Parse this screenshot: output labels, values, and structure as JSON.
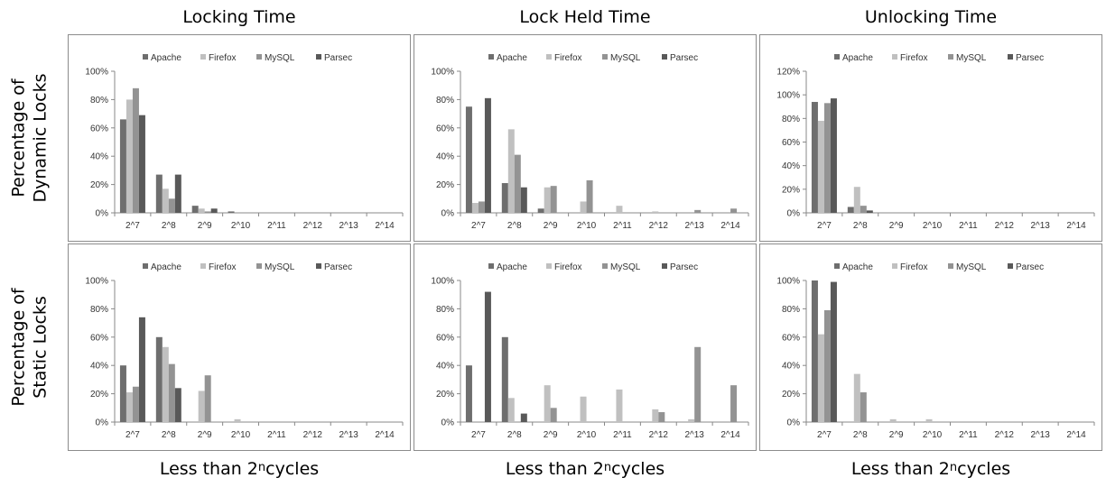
{
  "column_titles": [
    "Locking Time",
    "Lock Held Time",
    "Unlocking Time"
  ],
  "row_labels": [
    {
      "line1": "Percentage of",
      "line2": "Dynamic Locks"
    },
    {
      "line1": "Percentage of",
      "line2": "Static Locks"
    }
  ],
  "xlabel": {
    "prefix": "Less than 2",
    "sup": "n",
    "suffix": "cycles"
  },
  "colors": {
    "Apache": "#6e6e6e",
    "Firefox": "#c0c0c0",
    "MySQL": "#939393",
    "Parsec": "#595959"
  },
  "chart_data": [
    {
      "type": "bar",
      "categories": [
        "2^7",
        "2^8",
        "2^9",
        "2^10",
        "2^11",
        "2^12",
        "2^13",
        "2^14"
      ],
      "legend": [
        "Apache",
        "Firefox",
        "MySQL",
        "Parsec"
      ],
      "ylim": [
        0,
        100
      ],
      "yticks": [
        "0%",
        "20%",
        "40%",
        "60%",
        "80%",
        "100%"
      ],
      "series": [
        {
          "name": "Apache",
          "values": [
            66,
            27,
            5,
            1,
            0,
            0,
            0,
            0
          ]
        },
        {
          "name": "Firefox",
          "values": [
            80,
            17,
            3,
            0,
            0,
            0,
            0,
            0
          ]
        },
        {
          "name": "MySQL",
          "values": [
            88,
            10,
            1,
            0,
            0,
            0,
            0,
            0
          ]
        },
        {
          "name": "Parsec",
          "values": [
            69,
            27,
            3,
            0,
            0,
            0,
            0,
            0
          ]
        }
      ]
    },
    {
      "type": "bar",
      "categories": [
        "2^7",
        "2^8",
        "2^9",
        "2^10",
        "2^11",
        "2^12",
        "2^13",
        "2^14"
      ],
      "legend": [
        "Apache",
        "Firefox",
        "MySQL",
        "Parsec"
      ],
      "ylim": [
        0,
        100
      ],
      "yticks": [
        "0%",
        "20%",
        "40%",
        "60%",
        "80%",
        "100%"
      ],
      "series": [
        {
          "name": "Apache",
          "values": [
            75,
            21,
            3,
            0,
            0,
            0,
            0,
            0
          ]
        },
        {
          "name": "Firefox",
          "values": [
            7,
            59,
            18,
            8,
            5,
            1,
            0,
            0
          ]
        },
        {
          "name": "MySQL",
          "values": [
            8,
            41,
            19,
            23,
            0,
            0,
            2,
            3
          ]
        },
        {
          "name": "Parsec",
          "values": [
            81,
            18,
            0,
            0,
            0,
            0,
            0,
            0
          ]
        }
      ]
    },
    {
      "type": "bar",
      "categories": [
        "2^7",
        "2^8",
        "2^9",
        "2^10",
        "2^11",
        "2^12",
        "2^13",
        "2^14"
      ],
      "legend": [
        "Apache",
        "Firefox",
        "MySQL",
        "Parsec"
      ],
      "ylim": [
        0,
        120
      ],
      "yticks": [
        "0%",
        "20%",
        "40%",
        "60%",
        "80%",
        "100%",
        "120%"
      ],
      "series": [
        {
          "name": "Apache",
          "values": [
            94,
            5,
            0,
            0,
            0,
            0,
            0,
            0
          ]
        },
        {
          "name": "Firefox",
          "values": [
            78,
            22,
            0,
            0,
            0,
            0,
            0,
            0
          ]
        },
        {
          "name": "MySQL",
          "values": [
            93,
            6,
            0,
            0,
            0,
            0,
            0,
            0
          ]
        },
        {
          "name": "Parsec",
          "values": [
            97,
            2,
            0,
            0,
            0,
            0,
            0,
            0
          ]
        }
      ]
    },
    {
      "type": "bar",
      "categories": [
        "2^7",
        "2^8",
        "2^9",
        "2^10",
        "2^11",
        "2^12",
        "2^13",
        "2^14"
      ],
      "legend": [
        "Apache",
        "Firefox",
        "MySQL",
        "Parsec"
      ],
      "ylim": [
        0,
        100
      ],
      "yticks": [
        "0%",
        "20%",
        "40%",
        "60%",
        "80%",
        "100%"
      ],
      "series": [
        {
          "name": "Apache",
          "values": [
            40,
            60,
            0,
            0,
            0,
            0,
            0,
            0
          ]
        },
        {
          "name": "Firefox",
          "values": [
            21,
            53,
            22,
            2,
            0,
            0,
            0,
            0
          ]
        },
        {
          "name": "MySQL",
          "values": [
            25,
            41,
            33,
            0,
            0,
            0,
            0,
            0
          ]
        },
        {
          "name": "Parsec",
          "values": [
            74,
            24,
            0,
            0,
            0,
            0,
            0,
            0
          ]
        }
      ]
    },
    {
      "type": "bar",
      "categories": [
        "2^7",
        "2^8",
        "2^9",
        "2^10",
        "2^11",
        "2^12",
        "2^13",
        "2^14"
      ],
      "legend": [
        "Apache",
        "Firefox",
        "MySQL",
        "Parsec"
      ],
      "ylim": [
        0,
        100
      ],
      "yticks": [
        "0%",
        "20%",
        "40%",
        "60%",
        "80%",
        "100%"
      ],
      "series": [
        {
          "name": "Apache",
          "values": [
            40,
            60,
            0,
            0,
            0,
            0,
            0,
            0
          ]
        },
        {
          "name": "Firefox",
          "values": [
            0,
            17,
            26,
            18,
            23,
            9,
            2,
            0
          ]
        },
        {
          "name": "MySQL",
          "values": [
            0,
            0,
            10,
            0,
            0,
            7,
            53,
            26
          ]
        },
        {
          "name": "Parsec",
          "values": [
            92,
            6,
            0,
            0,
            0,
            0,
            0,
            0
          ]
        }
      ]
    },
    {
      "type": "bar",
      "categories": [
        "2^7",
        "2^8",
        "2^9",
        "2^10",
        "2^11",
        "2^12",
        "2^13",
        "2^14"
      ],
      "legend": [
        "Apache",
        "Firefox",
        "MySQL",
        "Parsec"
      ],
      "ylim": [
        0,
        100
      ],
      "yticks": [
        "0%",
        "20%",
        "40%",
        "60%",
        "80%",
        "100%"
      ],
      "series": [
        {
          "name": "Apache",
          "values": [
            100,
            0,
            0,
            0,
            0,
            0,
            0,
            0
          ]
        },
        {
          "name": "Firefox",
          "values": [
            62,
            34,
            2,
            2,
            0,
            0,
            0,
            0
          ]
        },
        {
          "name": "MySQL",
          "values": [
            79,
            21,
            0,
            0,
            0,
            0,
            0,
            0
          ]
        },
        {
          "name": "Parsec",
          "values": [
            99,
            0,
            0,
            0,
            0,
            0,
            0,
            0
          ]
        }
      ]
    }
  ]
}
